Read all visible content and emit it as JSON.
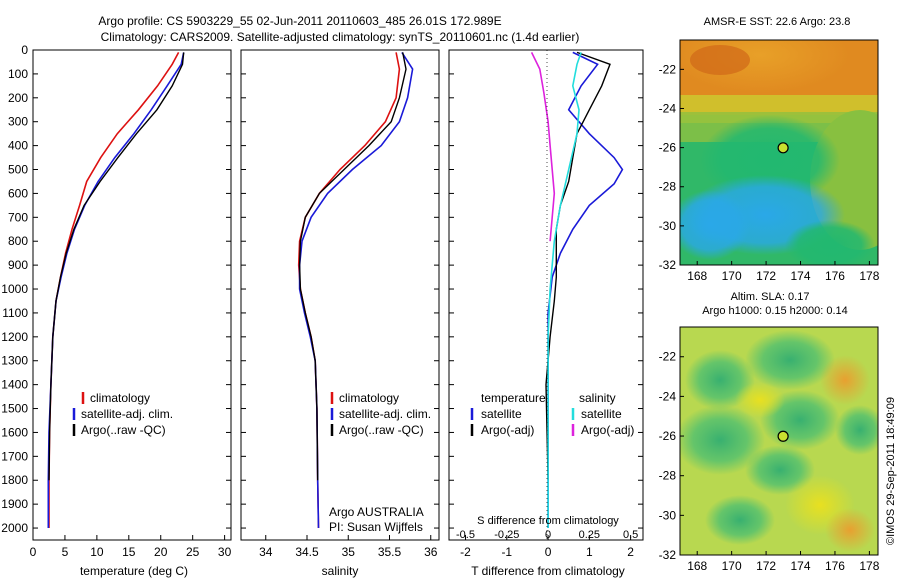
{
  "figure": {
    "title_line1": "Argo profile: CS 5903229_55 02-Jun-2011 20110603_485 26.01S 172.989E",
    "title_line2": "Climatology: CARS2009. Satellite-adjusted climatology: synTS_20110601.nc (1.4d earlier)",
    "credit": "©IMOS 29-Sep-2011 18:49:09"
  },
  "colors": {
    "climatology": "#dd1111",
    "satellite": "#1a1ad8",
    "argo": "#000000",
    "cyan": "#22dddd",
    "magenta": "#dd22dd"
  },
  "chart_data": [
    {
      "type": "line",
      "panel": "temperature",
      "xlabel": "temperature (deg C)",
      "ylabel": "",
      "xlim": [
        0,
        31
      ],
      "ylim": [
        2050,
        0
      ],
      "xticks": [
        0,
        5,
        10,
        15,
        20,
        25,
        30
      ],
      "yticks": [
        0,
        100,
        200,
        300,
        400,
        500,
        600,
        700,
        800,
        900,
        1000,
        1100,
        1200,
        1300,
        1400,
        1500,
        1600,
        1700,
        1800,
        1900,
        2000
      ],
      "legend": [
        "climatology",
        "satellite-adj. clim.",
        "Argo(..raw -QC)"
      ],
      "legend_placement": "lower-center",
      "series": [
        {
          "name": "climatology",
          "color_key": "climatology",
          "x": [
            22.8,
            21.8,
            19.5,
            16.5,
            13.2,
            10.6,
            8.4,
            7.3,
            6.1,
            5.1,
            4.3,
            3.6,
            3.1,
            2.8,
            2.6,
            2.5,
            2.5
          ],
          "y": [
            10,
            60,
            150,
            250,
            350,
            450,
            550,
            650,
            750,
            850,
            950,
            1050,
            1200,
            1400,
            1600,
            1800,
            2000
          ]
        },
        {
          "name": "satellite-adj. clim.",
          "color_key": "satellite",
          "x": [
            23.6,
            23.2,
            21.0,
            18.5,
            15.8,
            12.8,
            10.2,
            8.1,
            6.5,
            5.3,
            4.4,
            3.6,
            3.1,
            2.8,
            2.5,
            2.4,
            2.4
          ],
          "y": [
            10,
            60,
            150,
            250,
            350,
            450,
            550,
            650,
            750,
            850,
            950,
            1050,
            1200,
            1400,
            1600,
            1800,
            2000
          ]
        },
        {
          "name": "Argo(..raw -QC)",
          "color_key": "argo",
          "x": [
            23.6,
            23.4,
            21.8,
            19.4,
            16.2,
            13.3,
            10.5,
            8.0,
            6.4,
            5.2,
            4.3,
            3.6,
            3.1,
            2.8,
            2.6,
            2.5
          ],
          "y": [
            10,
            60,
            150,
            250,
            350,
            450,
            550,
            650,
            750,
            850,
            950,
            1050,
            1200,
            1400,
            1600,
            1800
          ]
        }
      ]
    },
    {
      "type": "line",
      "panel": "salinity",
      "xlabel": "salinity",
      "ylabel": "",
      "xlim": [
        33.7,
        36.1
      ],
      "ylim": [
        2050,
        0
      ],
      "xticks": [
        34,
        34.5,
        35,
        35.5,
        36
      ],
      "legend": [
        "climatology",
        "satellite-adj. clim.",
        "Argo(..raw -QC)"
      ],
      "legend_placement": "lower-right",
      "annotation_line1": "Argo AUSTRALIA",
      "annotation_line2": "PI: Susan Wijffels",
      "series": [
        {
          "name": "climatology",
          "color_key": "climatology",
          "x": [
            35.58,
            35.62,
            35.58,
            35.45,
            35.2,
            34.9,
            34.65,
            34.48,
            34.41,
            34.4,
            34.42,
            34.48,
            34.55,
            34.6,
            34.62,
            34.63,
            34.64
          ],
          "y": [
            10,
            80,
            200,
            300,
            400,
            500,
            600,
            700,
            800,
            900,
            1000,
            1100,
            1200,
            1300,
            1500,
            1800,
            2000
          ]
        },
        {
          "name": "satellite-adj. clim.",
          "color_key": "satellite",
          "x": [
            35.65,
            35.78,
            35.72,
            35.62,
            35.4,
            35.05,
            34.75,
            34.55,
            34.44,
            34.41,
            34.41,
            34.47,
            34.54,
            34.6,
            34.62,
            34.63,
            34.64
          ],
          "y": [
            10,
            80,
            200,
            300,
            400,
            500,
            600,
            700,
            800,
            900,
            1000,
            1100,
            1200,
            1300,
            1500,
            1800,
            2000
          ]
        },
        {
          "name": "Argo(..raw -QC)",
          "color_key": "argo",
          "x": [
            35.66,
            35.7,
            35.62,
            35.52,
            35.25,
            34.95,
            34.65,
            34.48,
            34.42,
            34.41,
            34.42,
            34.48,
            34.55,
            34.6,
            34.62,
            34.63
          ],
          "y": [
            10,
            80,
            200,
            300,
            400,
            500,
            600,
            700,
            800,
            900,
            1000,
            1100,
            1200,
            1300,
            1500,
            1800
          ]
        }
      ]
    },
    {
      "type": "line",
      "panel": "difference",
      "xlabel": "T difference from climatology",
      "xlabel_top": "S difference from climatology",
      "ylabel": "",
      "xlim": [
        -2.4,
        2.3
      ],
      "ylim": [
        2050,
        0
      ],
      "xticks": [
        -2,
        -1,
        0,
        1,
        2
      ],
      "xticks_top": [
        -0.5,
        -0.25,
        0,
        0.25,
        0.5
      ],
      "legend_temperature_title": "temperature",
      "legend_salinity_title": "salinity",
      "legend": [
        "satellite",
        "Argo(-adj)",
        "satellite",
        "Argo(-adj)"
      ],
      "series": [
        {
          "name": "satellite",
          "group": "temperature",
          "color_key": "satellite",
          "x": [
            0.6,
            1.2,
            0.8,
            0.5,
            1.0,
            1.6,
            1.8,
            1.6,
            1.0,
            0.6,
            0.3,
            0.1,
            0.0,
            0.0,
            0.0
          ],
          "y": [
            10,
            60,
            150,
            250,
            350,
            450,
            500,
            560,
            650,
            750,
            850,
            950,
            1100,
            1400,
            2000
          ]
        },
        {
          "name": "Argo(-adj)",
          "group": "temperature",
          "color_key": "argo",
          "x": [
            0.7,
            1.5,
            1.3,
            1.0,
            0.7,
            0.6,
            0.5,
            0.3,
            0.2,
            0.2,
            0.2,
            0.15,
            0.05,
            -0.05,
            0.0
          ],
          "y": [
            10,
            60,
            150,
            250,
            350,
            450,
            550,
            650,
            750,
            850,
            950,
            1050,
            1200,
            1400,
            1800
          ]
        },
        {
          "name": "satellite",
          "group": "salinity",
          "color_key": "cyan",
          "x": [
            0.8,
            0.7,
            0.6,
            0.75,
            0.7,
            0.5,
            0.3,
            0.15,
            0.05,
            0.0,
            0.0,
            0.0
          ],
          "y": [
            10,
            60,
            150,
            250,
            350,
            500,
            650,
            800,
            1000,
            1200,
            1500,
            2000
          ]
        },
        {
          "name": "Argo(-adj)",
          "group": "salinity",
          "color_key": "magenta",
          "x": [
            -0.4,
            -0.2,
            -0.1,
            0.0,
            0.05,
            0.1,
            0.15,
            0.1,
            0.05
          ],
          "y": [
            10,
            80,
            180,
            300,
            400,
            500,
            600,
            700,
            800
          ]
        }
      ]
    },
    {
      "type": "heatmap",
      "panel": "sst-map",
      "title": "AMSR-E  SST: 22.6  Argo: 23.8",
      "xlim": [
        167,
        178.5
      ],
      "ylim": [
        -32,
        -20.5
      ],
      "xticks": [
        168,
        170,
        172,
        174,
        176,
        178
      ],
      "yticks": [
        -22,
        -24,
        -26,
        -28,
        -30,
        -32
      ],
      "marker": {
        "lon": 172.989,
        "lat": -26.01
      }
    },
    {
      "type": "heatmap",
      "panel": "sla-map",
      "title_line1": "Altim. SLA: 0.17",
      "title_line2": "Argo h1000: 0.15 h2000: 0.14",
      "xlim": [
        167,
        178.5
      ],
      "ylim": [
        -32,
        -20.5
      ],
      "xticks": [
        168,
        170,
        172,
        174,
        176,
        178
      ],
      "yticks": [
        -22,
        -24,
        -26,
        -28,
        -30,
        -32
      ],
      "marker": {
        "lon": 172.989,
        "lat": -26.01
      }
    }
  ]
}
